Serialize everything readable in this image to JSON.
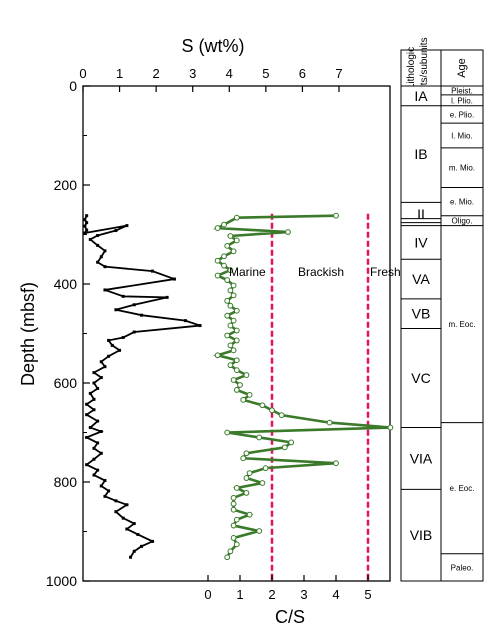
{
  "chart_data": [
    {
      "type": "line",
      "xlabel": "S (wt%)",
      "ylabel": "Depth (mbsf)",
      "xlim": [
        0,
        7
      ],
      "ylim": [
        0,
        1000
      ],
      "x_ticks": [
        "0",
        "1",
        "2",
        "3",
        "4",
        "5",
        "6",
        "7"
      ],
      "y_ticks": [
        "0",
        "200",
        "400",
        "600",
        "800",
        "1000"
      ],
      "series": [
        {
          "color": "#000000",
          "points": [
            [
              0.1,
              262
            ],
            [
              0.05,
              270
            ],
            [
              0.1,
              276
            ],
            [
              0.05,
              283
            ],
            [
              0.1,
              291
            ],
            [
              0.05,
              297
            ],
            [
              1.2,
              282
            ],
            [
              0.9,
              292
            ],
            [
              0.4,
              302
            ],
            [
              0.2,
              310
            ],
            [
              0.4,
              322
            ],
            [
              0.6,
              333
            ],
            [
              0.5,
              345
            ],
            [
              0.4,
              356
            ],
            [
              0.6,
              365
            ],
            [
              1.9,
              374
            ],
            [
              2.5,
              390
            ],
            [
              0.6,
              412
            ],
            [
              1.1,
              425
            ],
            [
              2.3,
              427
            ],
            [
              1.4,
              442
            ],
            [
              0.9,
              452
            ],
            [
              1.6,
              463
            ],
            [
              2.8,
              474
            ],
            [
              3.2,
              484
            ],
            [
              1.4,
              497
            ],
            [
              1.1,
              508
            ],
            [
              0.7,
              514
            ],
            [
              0.8,
              524
            ],
            [
              1.0,
              534
            ],
            [
              0.7,
              546
            ],
            [
              0.5,
              557
            ],
            [
              0.6,
              567
            ],
            [
              0.3,
              579
            ],
            [
              0.5,
              589
            ],
            [
              0.3,
              600
            ],
            [
              0.4,
              611
            ],
            [
              0.2,
              621
            ],
            [
              0.3,
              633
            ],
            [
              0.1,
              643
            ],
            [
              0.3,
              654
            ],
            [
              0.1,
              664
            ],
            [
              0.4,
              677
            ],
            [
              0.2,
              690
            ],
            [
              0.5,
              698
            ],
            [
              0.1,
              710
            ],
            [
              0.4,
              721
            ],
            [
              0.3,
              732
            ],
            [
              0.5,
              742
            ],
            [
              0.3,
              754
            ],
            [
              0.1,
              765
            ],
            [
              0.4,
              776
            ],
            [
              0.3,
              786
            ],
            [
              0.6,
              797
            ],
            [
              0.5,
              808
            ],
            [
              0.7,
              818
            ],
            [
              0.6,
              829
            ],
            [
              0.9,
              838
            ],
            [
              1.2,
              846
            ],
            [
              0.9,
              860
            ],
            [
              1.1,
              873
            ],
            [
              1.4,
              884
            ],
            [
              1.2,
              895
            ],
            [
              1.5,
              906
            ],
            [
              1.9,
              920
            ],
            [
              1.6,
              930
            ],
            [
              1.4,
              940
            ],
            [
              1.3,
              952
            ]
          ]
        }
      ]
    },
    {
      "type": "line",
      "xlabel": "C/S",
      "xlim": [
        0,
        6
      ],
      "ylim": [
        0,
        1000
      ],
      "x_ticks": [
        "0",
        "1",
        "2",
        "3",
        "4",
        "5"
      ],
      "thresholds": [
        2,
        5
      ],
      "threshold_color": "#e0145a",
      "zone_labels": [
        "Marine",
        "Brackish",
        "Fresh"
      ],
      "series": [
        {
          "color": "#3a7a2a",
          "points": [
            [
              4.0,
              262
            ],
            [
              0.9,
              266
            ],
            [
              0.5,
              280
            ],
            [
              0.3,
              287
            ],
            [
              2.5,
              295
            ],
            [
              0.7,
              303
            ],
            [
              0.9,
              312
            ],
            [
              0.6,
              323
            ],
            [
              0.8,
              334
            ],
            [
              0.5,
              344
            ],
            [
              0.3,
              353
            ],
            [
              0.5,
              363
            ],
            [
              0.7,
              372
            ],
            [
              0.3,
              383
            ],
            [
              0.6,
              392
            ],
            [
              0.8,
              403
            ],
            [
              0.7,
              413
            ],
            [
              0.8,
              423
            ],
            [
              0.6,
              434
            ],
            [
              0.7,
              444
            ],
            [
              0.9,
              454
            ],
            [
              0.6,
              464
            ],
            [
              0.8,
              474
            ],
            [
              0.7,
              484
            ],
            [
              0.9,
              494
            ],
            [
              0.6,
              504
            ],
            [
              0.9,
              514
            ],
            [
              0.7,
              524
            ],
            [
              0.8,
              534
            ],
            [
              0.3,
              544
            ],
            [
              0.9,
              554
            ],
            [
              0.7,
              564
            ],
            [
              0.9,
              574
            ],
            [
              1.2,
              584
            ],
            [
              0.8,
              594
            ],
            [
              1.0,
              604
            ],
            [
              0.9,
              614
            ],
            [
              1.3,
              624
            ],
            [
              1.1,
              634
            ],
            [
              1.7,
              645
            ],
            [
              2.0,
              655
            ],
            [
              2.3,
              665
            ],
            [
              3.8,
              680
            ],
            [
              5.7,
              690
            ],
            [
              0.6,
              700
            ],
            [
              1.6,
              710
            ],
            [
              2.6,
              720
            ],
            [
              2.4,
              730
            ],
            [
              1.2,
              742
            ],
            [
              1.1,
              752
            ],
            [
              4.0,
              762
            ],
            [
              1.8,
              772
            ],
            [
              1.3,
              782
            ],
            [
              1.2,
              792
            ],
            [
              1.7,
              802
            ],
            [
              0.9,
              812
            ],
            [
              1.2,
              822
            ],
            [
              0.8,
              832
            ],
            [
              0.8,
              844
            ],
            [
              0.8,
              856
            ],
            [
              1.3,
              866
            ],
            [
              0.9,
              876
            ],
            [
              0.8,
              888
            ],
            [
              1.6,
              899
            ],
            [
              0.8,
              913
            ],
            [
              0.9,
              926
            ],
            [
              0.7,
              940
            ],
            [
              0.6,
              952
            ]
          ]
        }
      ]
    }
  ],
  "lithology": {
    "header_units": "Lithologic units/subunits",
    "header_age": "Age",
    "units": [
      {
        "label": "IA",
        "top": 0,
        "bottom": 40
      },
      {
        "label": "IB",
        "top": 40,
        "bottom": 235
      },
      {
        "label": "II",
        "top": 235,
        "bottom": 282
      },
      {
        "label": "IV",
        "top": 282,
        "bottom": 350
      },
      {
        "label": "VA",
        "top": 350,
        "bottom": 430
      },
      {
        "label": "VB",
        "top": 430,
        "bottom": 490
      },
      {
        "label": "VC",
        "top": 490,
        "bottom": 690
      },
      {
        "label": "VIA",
        "top": 690,
        "bottom": 815
      },
      {
        "label": "VIB",
        "top": 815,
        "bottom": 1000
      }
    ],
    "unit_extra_lines": [
      268,
      276
    ],
    "ages": [
      {
        "label": "Pleist.",
        "top": 0,
        "bottom": 18
      },
      {
        "label": "l. Plio.",
        "top": 18,
        "bottom": 40
      },
      {
        "label": "e. Plio.",
        "top": 40,
        "bottom": 75
      },
      {
        "label": "l. Mio.",
        "top": 75,
        "bottom": 125
      },
      {
        "label": "m. Mio.",
        "top": 125,
        "bottom": 205
      },
      {
        "label": "e. Mio.",
        "top": 205,
        "bottom": 262
      },
      {
        "label": "Oligo.",
        "top": 262,
        "bottom": 282
      },
      {
        "label": "m. Eoc.",
        "top": 282,
        "bottom": 680
      },
      {
        "label": "e. Eoc.",
        "top": 680,
        "bottom": 945
      },
      {
        "label": "Paleo.",
        "top": 945,
        "bottom": 1000
      }
    ]
  }
}
